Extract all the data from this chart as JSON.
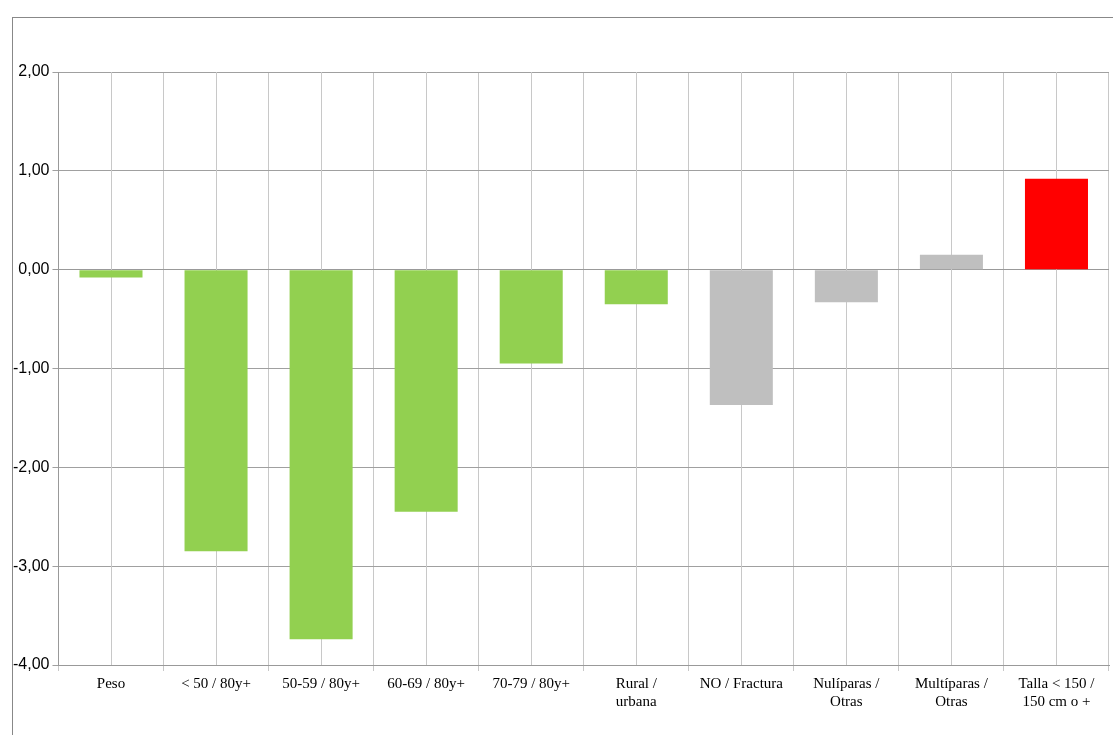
{
  "chart_data": {
    "type": "bar",
    "categories": [
      "Peso",
      "< 50 / 80y+",
      "50-59 / 80y+",
      "60-69 / 80y+",
      "70-79 / 80y+",
      "Rural / urbana",
      "NO / Fractura",
      "Nulíparas / Otras",
      "Multíparas / Otras",
      "Talla < 150 / 150 cm o +"
    ],
    "values": [
      -0.08,
      -2.85,
      -3.74,
      -2.45,
      -0.95,
      -0.35,
      -1.37,
      -0.33,
      0.15,
      0.92
    ],
    "colors": [
      "#92d050",
      "#92d050",
      "#92d050",
      "#92d050",
      "#92d050",
      "#92d050",
      "#bfbfbf",
      "#bfbfbf",
      "#bfbfbf",
      "#ff0000"
    ],
    "ylim": [
      -4,
      2
    ],
    "yticks": [
      {
        "value": -4,
        "label": "-4,00"
      },
      {
        "value": -3,
        "label": "-3,00"
      },
      {
        "value": -2,
        "label": "-2,00"
      },
      {
        "value": -1,
        "label": "-1,00"
      },
      {
        "value": 0,
        "label": "0,00"
      },
      {
        "value": 1,
        "label": "1,00"
      },
      {
        "value": 2,
        "label": "2,00"
      }
    ],
    "grid": true
  }
}
